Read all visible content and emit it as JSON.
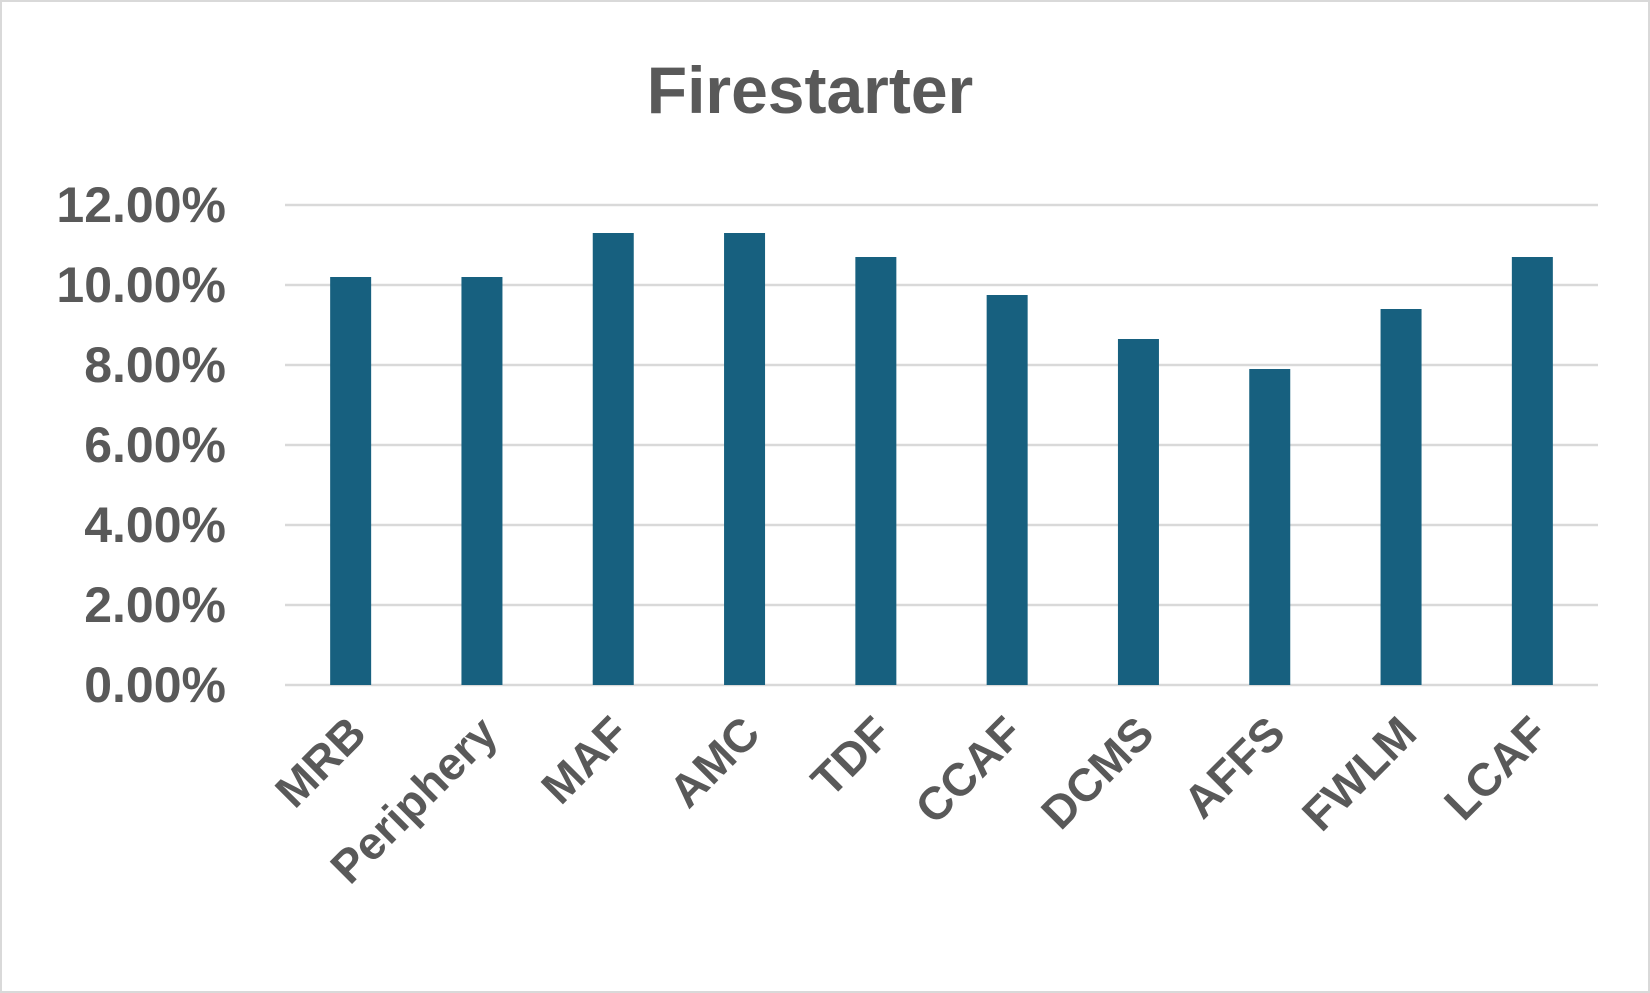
{
  "chart_data": {
    "type": "bar",
    "title": "Firestarter",
    "xlabel": "",
    "ylabel": "",
    "categories": [
      "MRB",
      "Periphery",
      "MAF",
      "AMC",
      "TDF",
      "CCAF",
      "DCMS",
      "AFFS",
      "FWLM",
      "LCAF"
    ],
    "series": [
      {
        "values": [
          10.2,
          10.2,
          11.3,
          11.3,
          10.7,
          9.75,
          8.65,
          7.9,
          9.4,
          10.7
        ]
      }
    ],
    "value_format": "percent",
    "value_decimals": 2,
    "ylim": [
      0,
      12
    ],
    "yticks": [
      0,
      2,
      4,
      6,
      8,
      10,
      12
    ],
    "ytick_labels": [
      "0.00%",
      "2.00%",
      "4.00%",
      "6.00%",
      "8.00%",
      "10.00%",
      "12.00%"
    ],
    "grid": true,
    "legend": "none",
    "bar_color": "#17607f",
    "text_color": "#595959",
    "grid_color": "#d9d9d9",
    "border_color": "#d9d9d9"
  }
}
